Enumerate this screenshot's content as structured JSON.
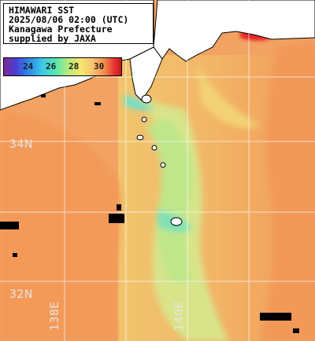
{
  "title": {
    "line1": "HIMAWARI SST",
    "line2": "2025/08/06 02:00 (UTC)",
    "line3": "Kanagawa Prefecture",
    "line4": "supplied by JAXA"
  },
  "colorbar": {
    "ticks": [
      "24",
      "26",
      "28",
      "30"
    ],
    "colors": [
      "#7a2a98",
      "#2f7fe6",
      "#3cc6e8",
      "#56e6b0",
      "#f6e56c",
      "#f28a4a",
      "#c21818"
    ]
  },
  "map_labels": {
    "lat_34": "34N",
    "lat_32": "32N",
    "lon_138": "138E",
    "lon_140": "140E"
  },
  "palette": {
    "warm_sea": "#f2a262",
    "mid_sea": "#f3c06c",
    "cool_sea": "#c8e88a",
    "cold_spot": "#6fe0c8",
    "hot_spot": "#e62828",
    "land": "#ffffff",
    "no_data": "#000000",
    "grid": "#ffffff"
  }
}
